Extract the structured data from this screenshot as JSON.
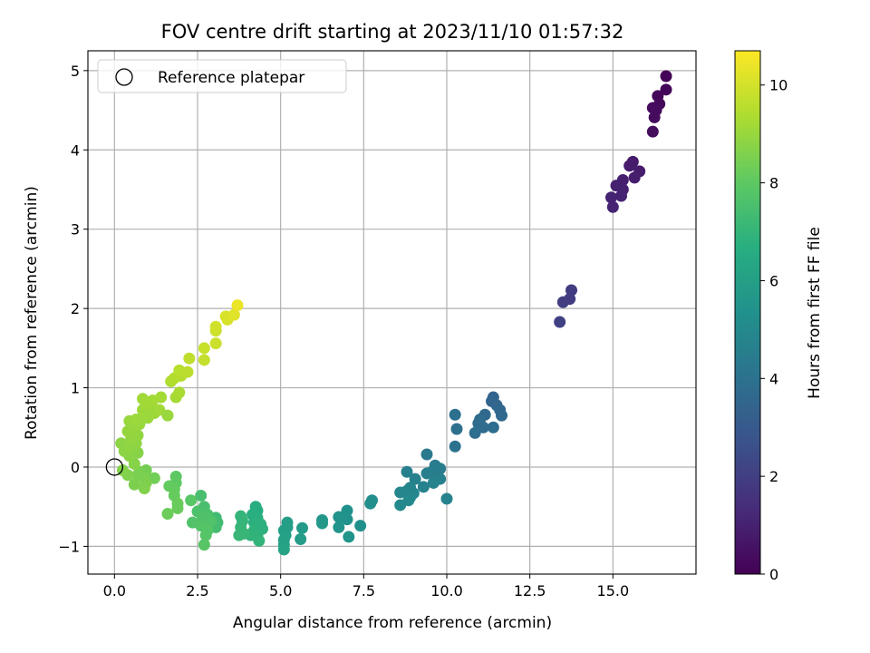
{
  "chart_data": {
    "type": "scatter",
    "title": "FOV centre drift starting at 2023/11/10 01:57:32",
    "xlabel": "Angular distance from reference (arcmin)",
    "ylabel": "Rotation from reference (arcmin)",
    "xlim": [
      -0.8,
      17.5
    ],
    "ylim": [
      -1.35,
      5.25
    ],
    "xticks": [
      0.0,
      2.5,
      5.0,
      7.5,
      10.0,
      12.5,
      15.0
    ],
    "xtick_labels": [
      "0.0",
      "2.5",
      "5.0",
      "7.5",
      "10.0",
      "12.5",
      "15.0"
    ],
    "yticks": [
      -1,
      0,
      1,
      2,
      3,
      4,
      5
    ],
    "ytick_labels": [
      "−1",
      "0",
      "1",
      "2",
      "3",
      "4",
      "5"
    ],
    "grid": true,
    "legend": {
      "position": "top-left",
      "label": "Reference platepar"
    },
    "reference_point": {
      "x": 0.0,
      "y": 0.0
    },
    "colorbar": {
      "label": "Hours from first FF file",
      "colormap": "viridis",
      "range": [
        0,
        10.7
      ],
      "ticks": [
        0,
        2,
        4,
        6,
        8,
        10
      ],
      "tick_labels": [
        "0",
        "2",
        "4",
        "6",
        "8",
        "10"
      ]
    },
    "points": [
      {
        "x": 16.6,
        "y": 4.93,
        "c": 0.1
      },
      {
        "x": 16.6,
        "y": 4.76,
        "c": 0.15
      },
      {
        "x": 16.35,
        "y": 4.68,
        "c": 0.2
      },
      {
        "x": 16.4,
        "y": 4.58,
        "c": 0.25
      },
      {
        "x": 16.2,
        "y": 4.53,
        "c": 0.3
      },
      {
        "x": 16.3,
        "y": 4.5,
        "c": 0.3
      },
      {
        "x": 16.25,
        "y": 4.41,
        "c": 0.35
      },
      {
        "x": 16.2,
        "y": 4.23,
        "c": 0.4
      },
      {
        "x": 15.6,
        "y": 3.85,
        "c": 0.8
      },
      {
        "x": 15.5,
        "y": 3.8,
        "c": 0.85
      },
      {
        "x": 15.8,
        "y": 3.73,
        "c": 0.85
      },
      {
        "x": 15.65,
        "y": 3.65,
        "c": 0.9
      },
      {
        "x": 15.3,
        "y": 3.62,
        "c": 0.95
      },
      {
        "x": 15.1,
        "y": 3.55,
        "c": 1.0
      },
      {
        "x": 15.3,
        "y": 3.5,
        "c": 1.0
      },
      {
        "x": 15.25,
        "y": 3.42,
        "c": 1.05
      },
      {
        "x": 14.95,
        "y": 3.4,
        "c": 1.05
      },
      {
        "x": 15.0,
        "y": 3.28,
        "c": 1.1
      },
      {
        "x": 13.75,
        "y": 2.23,
        "c": 1.9
      },
      {
        "x": 13.7,
        "y": 2.12,
        "c": 1.95
      },
      {
        "x": 13.5,
        "y": 2.08,
        "c": 2.0
      },
      {
        "x": 13.4,
        "y": 1.83,
        "c": 2.05
      },
      {
        "x": 11.4,
        "y": 0.88,
        "c": 3.4
      },
      {
        "x": 11.35,
        "y": 0.83,
        "c": 3.45
      },
      {
        "x": 11.5,
        "y": 0.78,
        "c": 3.5
      },
      {
        "x": 11.6,
        "y": 0.72,
        "c": 3.55
      },
      {
        "x": 11.65,
        "y": 0.65,
        "c": 3.6
      },
      {
        "x": 11.15,
        "y": 0.66,
        "c": 3.65
      },
      {
        "x": 11.0,
        "y": 0.6,
        "c": 3.7
      },
      {
        "x": 10.95,
        "y": 0.55,
        "c": 3.75
      },
      {
        "x": 11.1,
        "y": 0.5,
        "c": 3.75
      },
      {
        "x": 11.4,
        "y": 0.5,
        "c": 3.8
      },
      {
        "x": 10.85,
        "y": 0.43,
        "c": 3.85
      },
      {
        "x": 10.25,
        "y": 0.66,
        "c": 3.9
      },
      {
        "x": 10.3,
        "y": 0.48,
        "c": 3.95
      },
      {
        "x": 10.25,
        "y": 0.26,
        "c": 4.0
      },
      {
        "x": 9.4,
        "y": 0.16,
        "c": 4.3
      },
      {
        "x": 9.65,
        "y": 0.02,
        "c": 4.4
      },
      {
        "x": 9.8,
        "y": -0.02,
        "c": 4.45
      },
      {
        "x": 9.55,
        "y": -0.06,
        "c": 4.5
      },
      {
        "x": 9.4,
        "y": -0.08,
        "c": 4.55
      },
      {
        "x": 9.8,
        "y": -0.15,
        "c": 4.6
      },
      {
        "x": 9.05,
        "y": -0.15,
        "c": 4.65
      },
      {
        "x": 9.6,
        "y": -0.2,
        "c": 4.7
      },
      {
        "x": 9.3,
        "y": -0.25,
        "c": 4.7
      },
      {
        "x": 10.0,
        "y": -0.4,
        "c": 4.75
      },
      {
        "x": 8.9,
        "y": -0.26,
        "c": 4.8
      },
      {
        "x": 8.8,
        "y": -0.3,
        "c": 4.85
      },
      {
        "x": 9.0,
        "y": -0.33,
        "c": 4.9
      },
      {
        "x": 8.6,
        "y": -0.32,
        "c": 4.9
      },
      {
        "x": 8.9,
        "y": -0.38,
        "c": 4.95
      },
      {
        "x": 8.85,
        "y": -0.42,
        "c": 5.0
      },
      {
        "x": 8.6,
        "y": -0.48,
        "c": 5.0
      },
      {
        "x": 8.8,
        "y": -0.06,
        "c": 4.6
      },
      {
        "x": 7.75,
        "y": -0.42,
        "c": 5.2
      },
      {
        "x": 7.7,
        "y": -0.46,
        "c": 5.25
      },
      {
        "x": 7.4,
        "y": -0.74,
        "c": 5.3
      },
      {
        "x": 7.0,
        "y": -0.55,
        "c": 5.35
      },
      {
        "x": 7.0,
        "y": -0.66,
        "c": 5.4
      },
      {
        "x": 6.75,
        "y": -0.63,
        "c": 5.45
      },
      {
        "x": 6.75,
        "y": -0.76,
        "c": 5.5
      },
      {
        "x": 7.05,
        "y": -0.88,
        "c": 5.55
      },
      {
        "x": 6.25,
        "y": -0.67,
        "c": 5.6
      },
      {
        "x": 6.25,
        "y": -0.71,
        "c": 5.65
      },
      {
        "x": 5.65,
        "y": -0.77,
        "c": 5.8
      },
      {
        "x": 5.6,
        "y": -0.91,
        "c": 5.85
      },
      {
        "x": 5.2,
        "y": -0.7,
        "c": 5.9
      },
      {
        "x": 5.2,
        "y": -0.76,
        "c": 5.95
      },
      {
        "x": 5.1,
        "y": -0.8,
        "c": 6.0
      },
      {
        "x": 5.15,
        "y": -0.86,
        "c": 6.05
      },
      {
        "x": 5.1,
        "y": -0.92,
        "c": 6.1
      },
      {
        "x": 5.1,
        "y": -0.98,
        "c": 6.15
      },
      {
        "x": 5.1,
        "y": -1.04,
        "c": 6.2
      },
      {
        "x": 4.25,
        "y": -0.5,
        "c": 6.6
      },
      {
        "x": 4.3,
        "y": -0.55,
        "c": 6.65
      },
      {
        "x": 4.15,
        "y": -0.6,
        "c": 6.7
      },
      {
        "x": 4.3,
        "y": -0.64,
        "c": 6.7
      },
      {
        "x": 4.2,
        "y": -0.7,
        "c": 6.75
      },
      {
        "x": 4.4,
        "y": -0.72,
        "c": 6.8
      },
      {
        "x": 4.45,
        "y": -0.78,
        "c": 6.8
      },
      {
        "x": 4.2,
        "y": -0.8,
        "c": 6.85
      },
      {
        "x": 4.3,
        "y": -0.86,
        "c": 6.9
      },
      {
        "x": 4.35,
        "y": -0.93,
        "c": 6.95
      },
      {
        "x": 4.1,
        "y": -0.86,
        "c": 6.9
      },
      {
        "x": 3.8,
        "y": -0.62,
        "c": 7.0
      },
      {
        "x": 3.85,
        "y": -0.68,
        "c": 7.0
      },
      {
        "x": 3.8,
        "y": -0.76,
        "c": 7.05
      },
      {
        "x": 3.9,
        "y": -0.84,
        "c": 7.1
      },
      {
        "x": 3.75,
        "y": -0.86,
        "c": 7.1
      },
      {
        "x": 3.05,
        "y": -0.64,
        "c": 7.3
      },
      {
        "x": 3.1,
        "y": -0.7,
        "c": 7.35
      },
      {
        "x": 3.05,
        "y": -0.76,
        "c": 7.4
      },
      {
        "x": 2.6,
        "y": -0.36,
        "c": 7.5
      },
      {
        "x": 2.7,
        "y": -0.5,
        "c": 7.55
      },
      {
        "x": 2.5,
        "y": -0.56,
        "c": 7.6
      },
      {
        "x": 2.8,
        "y": -0.6,
        "c": 7.6
      },
      {
        "x": 2.65,
        "y": -0.64,
        "c": 7.65
      },
      {
        "x": 2.9,
        "y": -0.68,
        "c": 7.7
      },
      {
        "x": 2.35,
        "y": -0.7,
        "c": 7.7
      },
      {
        "x": 2.6,
        "y": -0.74,
        "c": 7.75
      },
      {
        "x": 2.8,
        "y": -0.8,
        "c": 7.8
      },
      {
        "x": 2.75,
        "y": -0.86,
        "c": 7.8
      },
      {
        "x": 2.7,
        "y": -0.98,
        "c": 7.85
      },
      {
        "x": 2.3,
        "y": -0.42,
        "c": 7.9
      },
      {
        "x": 1.85,
        "y": -0.12,
        "c": 8.0
      },
      {
        "x": 1.85,
        "y": -0.2,
        "c": 8.05
      },
      {
        "x": 1.65,
        "y": -0.24,
        "c": 8.1
      },
      {
        "x": 1.8,
        "y": -0.28,
        "c": 8.1
      },
      {
        "x": 1.8,
        "y": -0.36,
        "c": 8.15
      },
      {
        "x": 1.9,
        "y": -0.46,
        "c": 8.2
      },
      {
        "x": 1.9,
        "y": -0.52,
        "c": 8.2
      },
      {
        "x": 1.6,
        "y": -0.59,
        "c": 8.25
      },
      {
        "x": 1.2,
        "y": -0.14,
        "c": 8.35
      },
      {
        "x": 0.95,
        "y": -0.04,
        "c": 8.4
      },
      {
        "x": 0.75,
        "y": -0.06,
        "c": 8.45
      },
      {
        "x": 0.7,
        "y": -0.1,
        "c": 8.5
      },
      {
        "x": 0.9,
        "y": -0.14,
        "c": 8.5
      },
      {
        "x": 0.95,
        "y": -0.2,
        "c": 8.55
      },
      {
        "x": 0.6,
        "y": -0.22,
        "c": 8.55
      },
      {
        "x": 0.9,
        "y": -0.27,
        "c": 8.6
      },
      {
        "x": 0.4,
        "y": -0.1,
        "c": 8.6
      },
      {
        "x": 0.25,
        "y": -0.04,
        "c": 8.65
      },
      {
        "x": 0.6,
        "y": 0.04,
        "c": 8.7
      },
      {
        "x": 0.7,
        "y": 0.18,
        "c": 8.7
      },
      {
        "x": 0.6,
        "y": 0.22,
        "c": 8.75
      },
      {
        "x": 0.45,
        "y": 0.14,
        "c": 8.75
      },
      {
        "x": 0.3,
        "y": 0.2,
        "c": 8.8
      },
      {
        "x": 0.2,
        "y": 0.3,
        "c": 8.8
      },
      {
        "x": 0.45,
        "y": 0.26,
        "c": 8.85
      },
      {
        "x": 0.65,
        "y": 0.3,
        "c": 8.85
      },
      {
        "x": 0.5,
        "y": 0.36,
        "c": 8.9
      },
      {
        "x": 0.7,
        "y": 0.4,
        "c": 8.9
      },
      {
        "x": 0.4,
        "y": 0.45,
        "c": 8.95
      },
      {
        "x": 0.55,
        "y": 0.5,
        "c": 8.95
      },
      {
        "x": 0.75,
        "y": 0.54,
        "c": 9.0
      },
      {
        "x": 0.45,
        "y": 0.58,
        "c": 9.0
      },
      {
        "x": 0.65,
        "y": 0.6,
        "c": 9.05
      },
      {
        "x": 0.9,
        "y": 0.64,
        "c": 9.05
      },
      {
        "x": 0.85,
        "y": 0.72,
        "c": 9.1
      },
      {
        "x": 1.05,
        "y": 0.74,
        "c": 9.1
      },
      {
        "x": 0.95,
        "y": 0.8,
        "c": 9.15
      },
      {
        "x": 0.85,
        "y": 0.86,
        "c": 9.15
      },
      {
        "x": 1.15,
        "y": 0.84,
        "c": 9.2
      },
      {
        "x": 1.4,
        "y": 0.88,
        "c": 9.2
      },
      {
        "x": 1.0,
        "y": 0.62,
        "c": 9.05
      },
      {
        "x": 1.2,
        "y": 0.68,
        "c": 9.1
      },
      {
        "x": 1.35,
        "y": 0.72,
        "c": 9.15
      },
      {
        "x": 1.6,
        "y": 0.65,
        "c": 9.0
      },
      {
        "x": 1.85,
        "y": 0.88,
        "c": 9.25
      },
      {
        "x": 1.95,
        "y": 0.94,
        "c": 9.3
      },
      {
        "x": 1.7,
        "y": 1.08,
        "c": 9.4
      },
      {
        "x": 1.8,
        "y": 1.12,
        "c": 9.45
      },
      {
        "x": 2.0,
        "y": 1.15,
        "c": 9.5
      },
      {
        "x": 1.95,
        "y": 1.22,
        "c": 9.55
      },
      {
        "x": 2.2,
        "y": 1.2,
        "c": 9.6
      },
      {
        "x": 2.25,
        "y": 1.37,
        "c": 9.65
      },
      {
        "x": 2.7,
        "y": 1.35,
        "c": 9.75
      },
      {
        "x": 2.7,
        "y": 1.5,
        "c": 9.8
      },
      {
        "x": 3.05,
        "y": 1.56,
        "c": 9.85
      },
      {
        "x": 3.05,
        "y": 1.72,
        "c": 9.9
      },
      {
        "x": 3.05,
        "y": 1.77,
        "c": 9.95
      },
      {
        "x": 3.4,
        "y": 1.86,
        "c": 10.05
      },
      {
        "x": 3.35,
        "y": 1.9,
        "c": 10.1
      },
      {
        "x": 3.6,
        "y": 1.92,
        "c": 10.2
      },
      {
        "x": 3.7,
        "y": 2.04,
        "c": 10.4
      }
    ]
  }
}
